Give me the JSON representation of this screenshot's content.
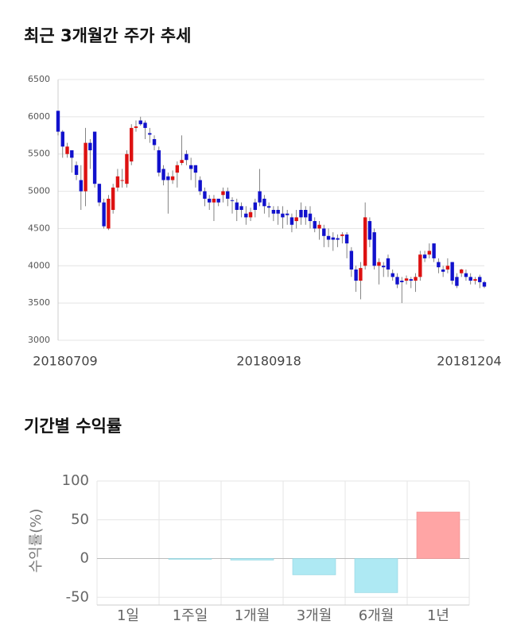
{
  "chart_data": [
    {
      "type": "candlestick",
      "title": "최근 3개월간 주가 추세",
      "categories": [
        "20180709",
        null,
        null,
        null,
        null,
        null,
        null,
        null,
        null,
        null,
        null,
        null,
        null,
        null,
        null,
        null,
        null,
        null,
        null,
        null,
        null,
        null,
        null,
        null,
        null,
        null,
        null,
        null,
        null,
        null,
        null,
        null,
        null,
        null,
        null,
        null,
        null,
        null,
        null,
        null,
        null,
        null,
        null,
        null,
        null,
        null,
        "20180918",
        null,
        null,
        null,
        null,
        null,
        null,
        null,
        null,
        null,
        null,
        null,
        null,
        null,
        null,
        null,
        null,
        null,
        null,
        null,
        null,
        null,
        null,
        null,
        null,
        null,
        null,
        null,
        null,
        null,
        null,
        null,
        null,
        null,
        null,
        null,
        null,
        null,
        null,
        null,
        null,
        null,
        null,
        null,
        null,
        null,
        null,
        "20181204"
      ],
      "open": [
        6080,
        5800,
        5500,
        5550,
        5350,
        5150,
        5000,
        5650,
        5800,
        5100,
        4850,
        4500,
        4750,
        5050,
        5150,
        5100,
        5400,
        5850,
        5950,
        5920,
        5780,
        5700,
        5550,
        5300,
        5200,
        5150,
        5250,
        5380,
        5500,
        5350,
        5350,
        5150,
        5000,
        4900,
        4850,
        4900,
        4950,
        5000,
        4880,
        4850,
        4800,
        4700,
        4650,
        4850,
        5000,
        4900,
        4800,
        4750,
        4750,
        4700,
        4700,
        4650,
        4600,
        4750,
        4750,
        4700,
        4600,
        4500,
        4500,
        4400,
        4380,
        4370,
        4400,
        4420,
        4200,
        3950,
        3800,
        4000,
        4600,
        4450,
        4000,
        4000,
        4100,
        3900,
        3850,
        3800,
        3800,
        3820,
        3800,
        3850,
        4150,
        4150,
        4300,
        4050,
        3950,
        3950,
        4050,
        3850,
        3900,
        3900,
        3850,
        3800,
        3850,
        3780
      ],
      "high": [
        6080,
        5820,
        5650,
        5550,
        5400,
        5350,
        5850,
        5700,
        5800,
        5100,
        4900,
        4950,
        5100,
        5300,
        5300,
        5550,
        5900,
        5950,
        6000,
        5950,
        5850,
        5750,
        5600,
        5350,
        5250,
        5280,
        5400,
        5750,
        5550,
        5450,
        5350,
        5200,
        5050,
        4950,
        4950,
        4900,
        5050,
        5050,
        4920,
        4900,
        4850,
        4800,
        4780,
        4900,
        5300,
        4950,
        4850,
        4800,
        4800,
        4800,
        4750,
        4700,
        4750,
        4850,
        4800,
        4800,
        4650,
        4600,
        4550,
        4500,
        4450,
        4420,
        4450,
        4450,
        4250,
        4000,
        4050,
        4850,
        4650,
        4500,
        4100,
        4050,
        4150,
        3950,
        3900,
        3850,
        3870,
        3850,
        3900,
        4200,
        4200,
        4300,
        4300,
        4100,
        4000,
        4100,
        4050,
        3900,
        3960,
        3950,
        3900,
        3850,
        3880,
        3800
      ],
      "low": [
        5750,
        5450,
        5450,
        5250,
        5150,
        4750,
        4800,
        5300,
        5050,
        4800,
        4500,
        4480,
        4700,
        5000,
        5050,
        5050,
        5350,
        5800,
        5880,
        5700,
        5650,
        5550,
        5200,
        5080,
        4700,
        5100,
        5050,
        5350,
        5350,
        5150,
        5050,
        4950,
        4800,
        4750,
        4600,
        4800,
        4850,
        4800,
        4700,
        4600,
        4650,
        4550,
        4600,
        4650,
        4800,
        4700,
        4650,
        4600,
        4550,
        4500,
        4550,
        4450,
        4500,
        4550,
        4550,
        4500,
        4450,
        4350,
        4250,
        4250,
        4200,
        4250,
        4300,
        4100,
        3850,
        3650,
        3550,
        3950,
        4250,
        3950,
        3750,
        3850,
        3850,
        3800,
        3700,
        3500,
        3750,
        3700,
        3650,
        3800,
        4050,
        4100,
        4050,
        3900,
        3850,
        3900,
        3750,
        3700,
        3850,
        3800,
        3750,
        3750,
        3700,
        3700
      ],
      "close": [
        5800,
        5600,
        5600,
        5450,
        5220,
        5000,
        5650,
        5550,
        5100,
        4850,
        4530,
        4900,
        5050,
        5200,
        5150,
        5500,
        5850,
        5870,
        5900,
        5850,
        5760,
        5620,
        5250,
        5150,
        5150,
        5200,
        5350,
        5420,
        5420,
        5300,
        5250,
        5000,
        4900,
        4850,
        4900,
        4850,
        5000,
        4900,
        4870,
        4750,
        4750,
        4650,
        4720,
        4750,
        4850,
        4800,
        4780,
        4700,
        4700,
        4650,
        4680,
        4550,
        4650,
        4650,
        4650,
        4600,
        4500,
        4550,
        4400,
        4350,
        4350,
        4350,
        4420,
        4300,
        3950,
        3800,
        3970,
        4650,
        4350,
        4000,
        4050,
        3980,
        3950,
        3850,
        3750,
        3780,
        3830,
        3800,
        3850,
        4150,
        4100,
        4200,
        4100,
        3980,
        3920,
        4000,
        3800,
        3730,
        3950,
        3850,
        3800,
        3820,
        3780,
        3720
      ],
      "up_color": "#dd1111",
      "down_color": "#1111cc",
      "ylim": [
        3000,
        6500
      ],
      "yticks": [
        3000,
        3500,
        4000,
        4500,
        5000,
        5500,
        6000,
        6500
      ],
      "grid": true
    },
    {
      "type": "bar",
      "title": "기간별 수익률",
      "ylabel": "수익률(%)",
      "categories": [
        "1일",
        "1주일",
        "1개월",
        "3개월",
        "6개월",
        "1년"
      ],
      "values": [
        0,
        -1,
        -2,
        -21,
        -44,
        60
      ],
      "positive_color": "#ffa5a5",
      "negative_color": "#aee9f3",
      "ylim": [
        -60,
        100
      ],
      "yticks": [
        -50,
        0,
        50,
        100
      ],
      "grid": true
    }
  ]
}
